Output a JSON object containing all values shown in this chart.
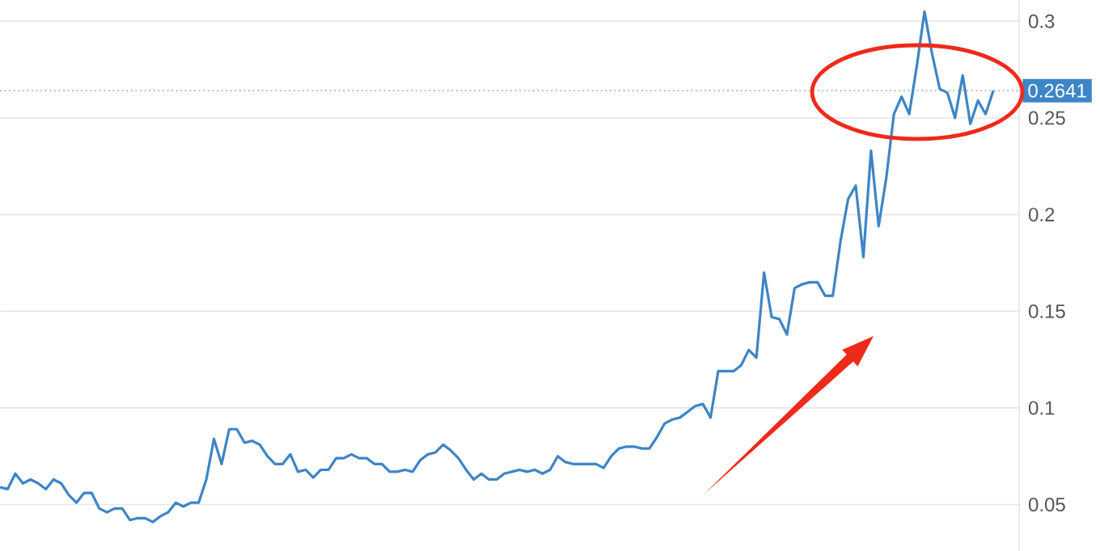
{
  "chart_data": {
    "type": "line",
    "categories": [
      null,
      null,
      null,
      null,
      null,
      null,
      null,
      null,
      null,
      null,
      null,
      null,
      null,
      null,
      null,
      null,
      null,
      null,
      null,
      null,
      null,
      null,
      null,
      null,
      null,
      null,
      null,
      null,
      null,
      null,
      null,
      null,
      null,
      null,
      null,
      null,
      null,
      null,
      null,
      null,
      null,
      null,
      null,
      null,
      null,
      null,
      null,
      null,
      null,
      null,
      null,
      null,
      null,
      null,
      null,
      null,
      null,
      null,
      null,
      null,
      null,
      null,
      null,
      null,
      null,
      null,
      null,
      null,
      null,
      null,
      null,
      null,
      null,
      null,
      null,
      null,
      null,
      null,
      null,
      null,
      null,
      null,
      null,
      null,
      null,
      null,
      null,
      null,
      null,
      null,
      null,
      null,
      null,
      null,
      null,
      null,
      null,
      null,
      null,
      null,
      null,
      null,
      null,
      null,
      null,
      null,
      null,
      null,
      null,
      null,
      null,
      null,
      null,
      null,
      null,
      null,
      null,
      null,
      null,
      null,
      null,
      null,
      null,
      null,
      null,
      null,
      null,
      null,
      null,
      null,
      null
    ],
    "series": [
      {
        "color": "#3d85c6",
        "values": [
          0.059,
          0.058,
          0.066,
          0.061,
          0.063,
          0.061,
          0.058,
          0.063,
          0.061,
          0.055,
          0.051,
          0.056,
          0.056,
          0.048,
          0.046,
          0.048,
          0.048,
          0.042,
          0.043,
          0.043,
          0.041,
          0.044,
          0.046,
          0.051,
          0.049,
          0.051,
          0.051,
          0.063,
          0.084,
          0.071,
          0.089,
          0.089,
          0.082,
          0.083,
          0.081,
          0.075,
          0.071,
          0.071,
          0.076,
          0.067,
          0.068,
          0.064,
          0.068,
          0.068,
          0.074,
          0.074,
          0.076,
          0.074,
          0.074,
          0.071,
          0.071,
          0.067,
          0.067,
          0.068,
          0.067,
          0.073,
          0.076,
          0.077,
          0.081,
          0.078,
          0.074,
          0.068,
          0.063,
          0.066,
          0.063,
          0.063,
          0.066,
          0.067,
          0.068,
          0.067,
          0.068,
          0.066,
          0.068,
          0.075,
          0.072,
          0.071,
          0.071,
          0.071,
          0.071,
          0.069,
          0.075,
          0.079,
          0.08,
          0.08,
          0.079,
          0.079,
          0.085,
          0.092,
          0.094,
          0.095,
          0.098,
          0.101,
          0.102,
          0.095,
          0.119,
          0.119,
          0.119,
          0.122,
          0.13,
          0.126,
          0.17,
          0.147,
          0.146,
          0.138,
          0.162,
          0.164,
          0.165,
          0.165,
          0.158,
          0.158,
          0.186,
          0.208,
          0.215,
          0.178,
          0.233,
          0.194,
          0.219,
          0.252,
          0.261,
          0.252,
          0.277,
          0.305,
          0.283,
          0.265,
          0.263,
          0.25,
          0.272,
          0.247,
          0.259,
          0.252,
          0.2641
        ]
      }
    ],
    "ylim": [
      0.026,
      0.311
    ],
    "yticks": [
      0.05,
      0.1,
      0.15,
      0.2,
      0.25,
      0.3
    ],
    "grid": "y",
    "ref_lines": [
      {
        "axis": "y",
        "value": 0.2641,
        "label": "0.2641",
        "color": "#999999",
        "line_style": "dotted"
      }
    ]
  }
}
